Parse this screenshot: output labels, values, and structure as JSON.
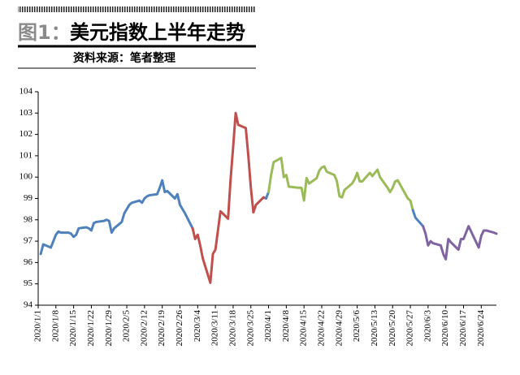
{
  "chart_data": {
    "type": "line",
    "figure_label": "图1：",
    "title": "美元指数上半年走势",
    "subtitle": "资料来源：笔者整理",
    "xlim": [
      "2020/1/1",
      "2020/6/30"
    ],
    "xticks": [
      "2020/1/1",
      "2020/1/8",
      "2020/1/15",
      "2020/1/22",
      "2020/1/29",
      "2020/2/5",
      "2020/2/12",
      "2020/2/19",
      "2020/2/26",
      "2020/3/4",
      "2020/3/11",
      "2020/3/18",
      "2020/3/25",
      "2020/4/1",
      "2020/4/8",
      "2020/4/15",
      "2020/4/22",
      "2020/4/29",
      "2020/5/6",
      "2020/5/13",
      "2020/5/20",
      "2020/5/27",
      "2020/6/3",
      "2020/6/10",
      "2020/6/17",
      "2020/6/24"
    ],
    "ylim": [
      94,
      104
    ],
    "yticks": [
      94,
      95,
      96,
      97,
      98,
      99,
      100,
      101,
      102,
      103,
      104
    ],
    "grid": false,
    "series": [
      {
        "color": "#4f81bd",
        "x": [
          "2020/1/2",
          "2020/1/3",
          "2020/1/6",
          "2020/1/7",
          "2020/1/8",
          "2020/1/9",
          "2020/1/10",
          "2020/1/13",
          "2020/1/14",
          "2020/1/15",
          "2020/1/16",
          "2020/1/17",
          "2020/1/20",
          "2020/1/21",
          "2020/1/22",
          "2020/1/23",
          "2020/1/24",
          "2020/1/27",
          "2020/1/28",
          "2020/1/29",
          "2020/1/30",
          "2020/1/31",
          "2020/2/3",
          "2020/2/4",
          "2020/2/5",
          "2020/2/6",
          "2020/2/7",
          "2020/2/10",
          "2020/2/11",
          "2020/2/12",
          "2020/2/13",
          "2020/2/14",
          "2020/2/17",
          "2020/2/18",
          "2020/2/19",
          "2020/2/20",
          "2020/2/21",
          "2020/2/24",
          "2020/2/25",
          "2020/2/26",
          "2020/2/27",
          "2020/2/28",
          "2020/3/2"
        ],
        "values": [
          96.4,
          96.85,
          96.7,
          97.0,
          97.3,
          97.45,
          97.4,
          97.4,
          97.35,
          97.2,
          97.3,
          97.6,
          97.65,
          97.6,
          97.5,
          97.85,
          97.9,
          97.95,
          98.0,
          97.95,
          97.4,
          97.6,
          97.9,
          98.3,
          98.5,
          98.7,
          98.8,
          98.9,
          98.8,
          99.0,
          99.1,
          99.15,
          99.2,
          99.5,
          99.85,
          99.3,
          99.35,
          99.0,
          99.2,
          98.7,
          98.5,
          98.3,
          97.6
        ]
      },
      {
        "color": "#c0504d",
        "x": [
          "2020/3/2",
          "2020/3/3",
          "2020/3/4",
          "2020/3/5",
          "2020/3/6",
          "2020/3/9",
          "2020/3/10",
          "2020/3/11",
          "2020/3/12",
          "2020/3/13",
          "2020/3/16",
          "2020/3/17",
          "2020/3/18",
          "2020/3/19",
          "2020/3/20",
          "2020/3/23",
          "2020/3/24",
          "2020/3/25",
          "2020/3/26",
          "2020/3/27",
          "2020/3/30",
          "2020/3/31"
        ],
        "values": [
          97.6,
          97.1,
          97.3,
          96.8,
          96.2,
          95.05,
          96.4,
          96.6,
          97.5,
          98.4,
          98.05,
          99.9,
          101.4,
          103.0,
          102.45,
          102.3,
          101.0,
          99.5,
          98.35,
          98.7,
          99.05,
          99.0
        ]
      },
      {
        "color": "#4f81bd",
        "x": [
          "2020/3/31",
          "2020/4/1"
        ],
        "values": [
          99.0,
          99.3
        ]
      },
      {
        "color": "#9bbb59",
        "x": [
          "2020/4/1",
          "2020/4/2",
          "2020/4/3",
          "2020/4/6",
          "2020/4/7",
          "2020/4/8",
          "2020/4/9",
          "2020/4/13",
          "2020/4/14",
          "2020/4/15",
          "2020/4/16",
          "2020/4/17",
          "2020/4/20",
          "2020/4/21",
          "2020/4/22",
          "2020/4/23",
          "2020/4/24",
          "2020/4/27",
          "2020/4/28",
          "2020/4/29",
          "2020/4/30",
          "2020/5/1",
          "2020/5/4",
          "2020/5/5",
          "2020/5/6",
          "2020/5/7",
          "2020/5/8",
          "2020/5/11",
          "2020/5/12",
          "2020/5/13",
          "2020/5/14",
          "2020/5/15",
          "2020/5/18",
          "2020/5/19",
          "2020/5/20",
          "2020/5/21",
          "2020/5/22",
          "2020/5/26",
          "2020/5/27",
          "2020/5/28"
        ],
        "values": [
          99.3,
          100.1,
          100.7,
          100.9,
          100.0,
          100.1,
          99.55,
          99.5,
          99.5,
          98.9,
          99.95,
          99.7,
          99.95,
          100.3,
          100.45,
          100.5,
          100.25,
          100.1,
          99.8,
          99.1,
          99.05,
          99.4,
          99.7,
          99.9,
          100.2,
          99.8,
          99.8,
          100.2,
          100.05,
          100.2,
          100.35,
          100.0,
          99.5,
          99.3,
          99.5,
          99.8,
          99.85,
          99.0,
          98.9,
          98.45
        ]
      },
      {
        "color": "#4f81bd",
        "x": [
          "2020/5/28",
          "2020/5/29",
          "2020/6/1"
        ],
        "values": [
          98.45,
          98.1,
          97.7
        ]
      },
      {
        "color": "#8064a2",
        "x": [
          "2020/6/1",
          "2020/6/2",
          "2020/6/3",
          "2020/6/4",
          "2020/6/5",
          "2020/6/8",
          "2020/6/9",
          "2020/6/10",
          "2020/6/11",
          "2020/6/12",
          "2020/6/15",
          "2020/6/16",
          "2020/6/17",
          "2020/6/18",
          "2020/6/19",
          "2020/6/22",
          "2020/6/23",
          "2020/6/24",
          "2020/6/25",
          "2020/6/26",
          "2020/6/29",
          "2020/6/30"
        ],
        "values": [
          97.7,
          97.35,
          96.8,
          97.0,
          96.9,
          96.8,
          96.4,
          96.15,
          97.1,
          96.95,
          96.6,
          97.1,
          97.1,
          97.4,
          97.7,
          96.95,
          96.7,
          97.25,
          97.5,
          97.5,
          97.4,
          97.35
        ]
      }
    ]
  }
}
